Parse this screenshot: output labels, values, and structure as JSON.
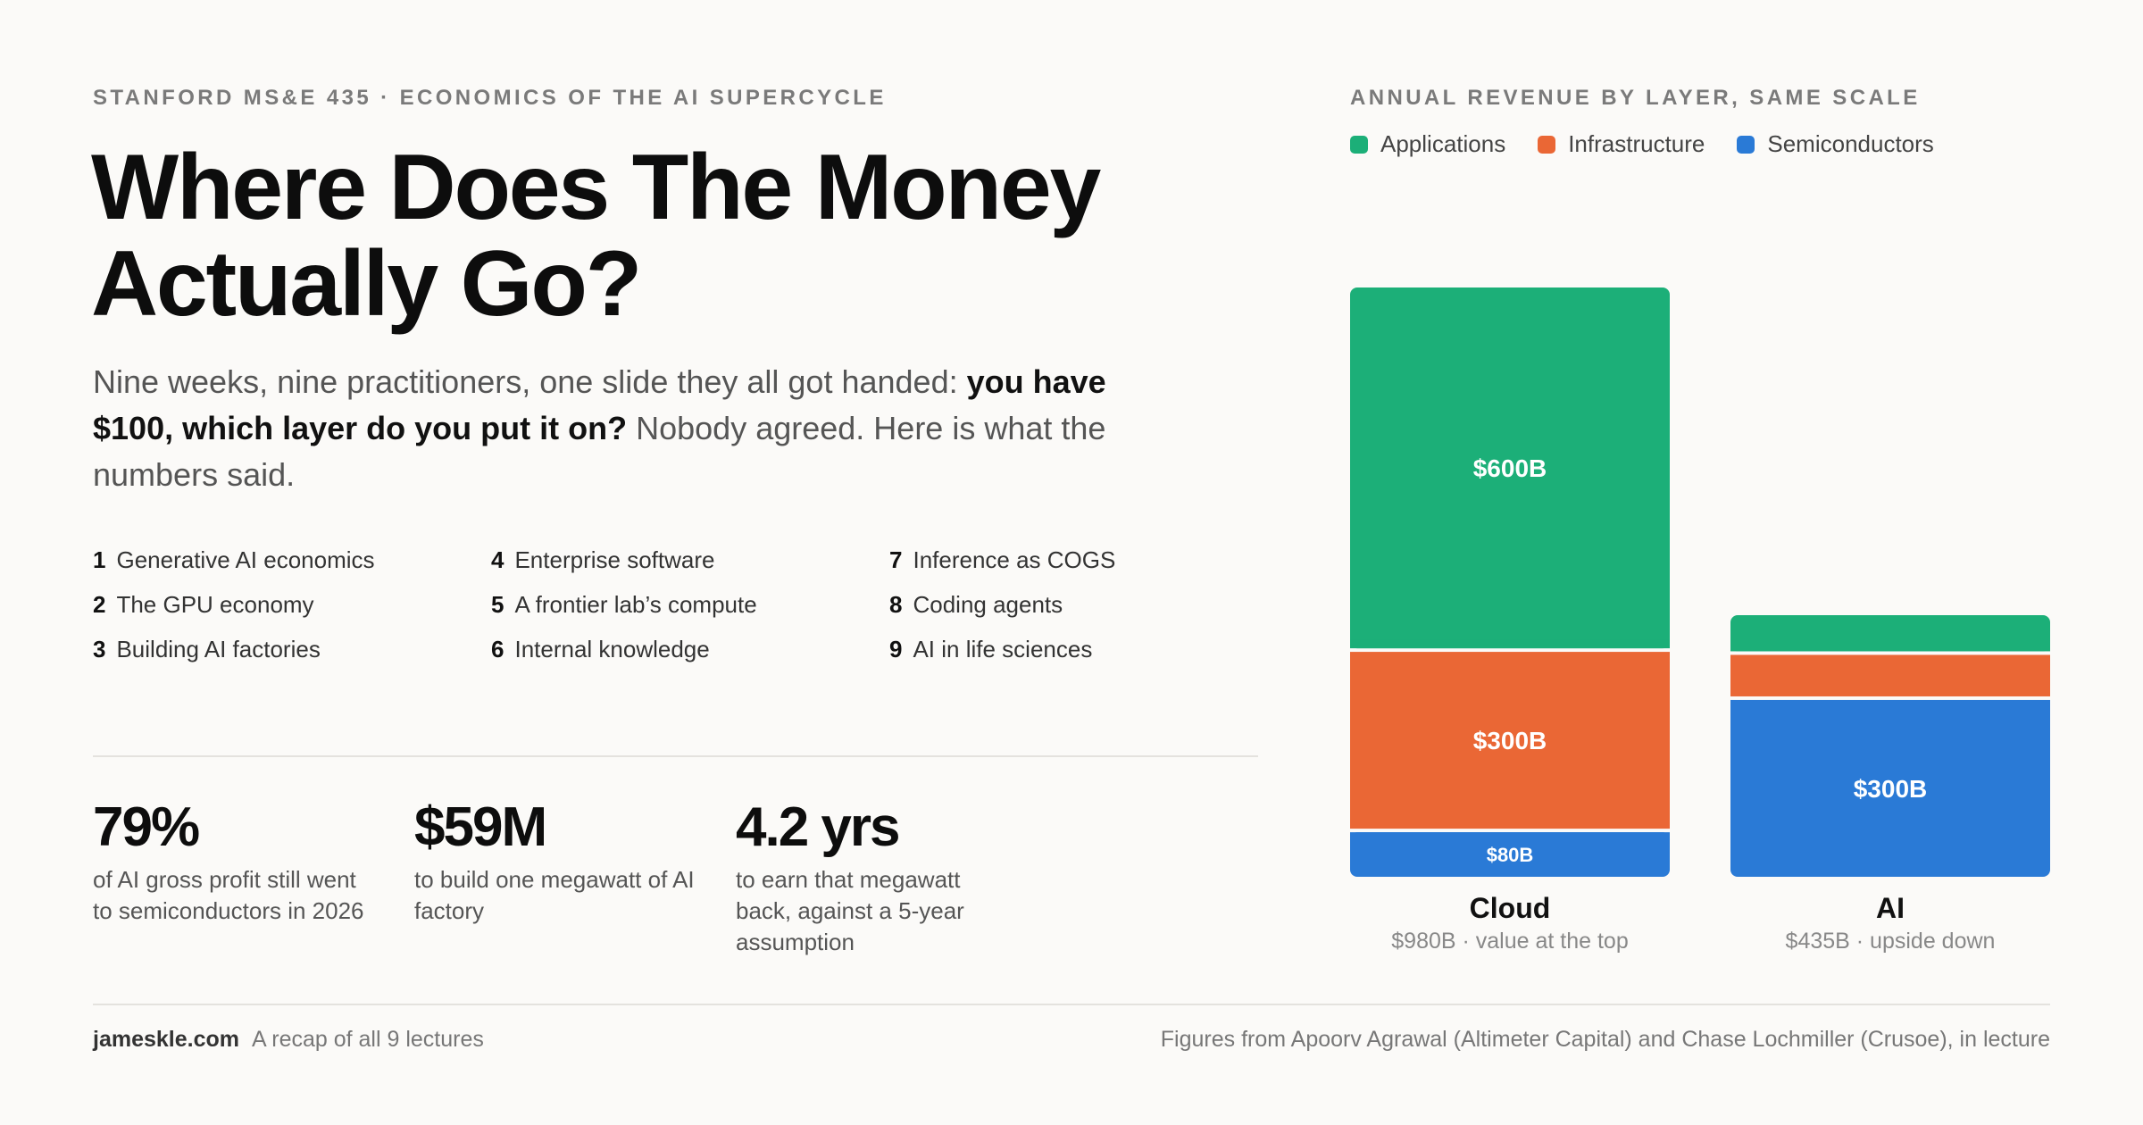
{
  "header": {
    "eyebrow": "STANFORD MS&E 435 · ECONOMICS OF THE AI SUPERCYCLE",
    "title": "Where Does The Money Actually Go?",
    "intro_before": "Nine weeks, nine practitioners, one slide they all got handed: ",
    "intro_bold": "you have $100, which layer do you put it on?",
    "intro_after": " Nobody agreed. Here is what the numbers said."
  },
  "lectures": [
    {
      "num": "1",
      "label": "Generative AI economics"
    },
    {
      "num": "2",
      "label": "The GPU economy"
    },
    {
      "num": "3",
      "label": "Building AI factories"
    },
    {
      "num": "4",
      "label": "Enterprise software"
    },
    {
      "num": "5",
      "label": "A frontier lab’s compute"
    },
    {
      "num": "6",
      "label": "Internal knowledge"
    },
    {
      "num": "7",
      "label": "Inference as COGS"
    },
    {
      "num": "8",
      "label": "Coding agents"
    },
    {
      "num": "9",
      "label": "AI in life sciences"
    }
  ],
  "stats": [
    {
      "value": "79%",
      "desc": "of AI gross profit still went to semiconductors in 2026"
    },
    {
      "value": "$59M",
      "desc": "to build one megawatt of AI factory"
    },
    {
      "value": "4.2 yrs",
      "desc": "to earn that megawatt back, against a 5-year assumption"
    }
  ],
  "colors": {
    "applications": "#1caf78",
    "infrastructure": "#ea6735",
    "semiconductors": "#2a7ad6"
  },
  "chart_data": {
    "type": "bar",
    "stacked": true,
    "title": "ANNUAL REVENUE BY LAYER, SAME SCALE",
    "legend_position": "top-left",
    "categories": [
      "Cloud",
      "AI"
    ],
    "category_subtitles": [
      "$980B · value at the top",
      "$435B · upside down"
    ],
    "series": [
      {
        "name": "Semiconductors",
        "values": [
          80,
          300
        ],
        "labels": [
          "$80B",
          "$300B"
        ]
      },
      {
        "name": "Infrastructure",
        "values": [
          300,
          75
        ],
        "labels": [
          "$300B",
          ""
        ]
      },
      {
        "name": "Applications",
        "values": [
          600,
          60
        ],
        "labels": [
          "$600B",
          ""
        ]
      }
    ],
    "ylim": [
      0,
      980
    ],
    "grid": false
  },
  "footer": {
    "site": "jameskle.com",
    "tagline": "A recap of all 9 lectures",
    "credits": "Figures from Apoorv Agrawal (Altimeter Capital) and Chase Lochmiller (Crusoe), in lecture"
  }
}
